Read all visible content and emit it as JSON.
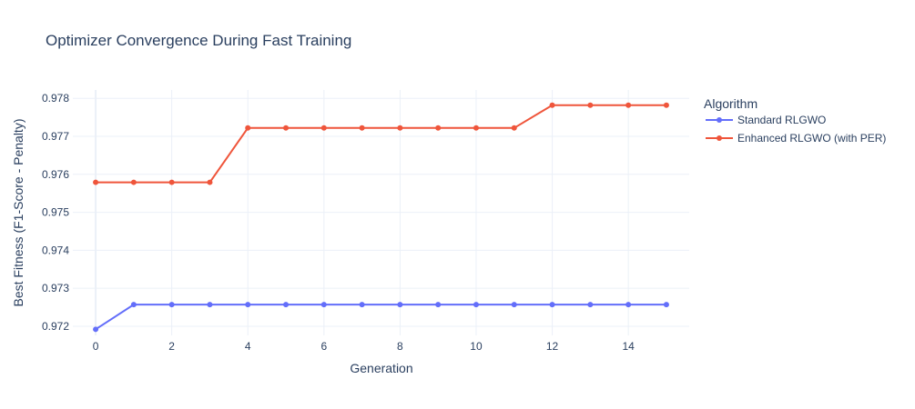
{
  "chart_data": {
    "type": "line",
    "title": "Optimizer Convergence During Fast Training",
    "xlabel": "Generation",
    "ylabel": "Best Fitness (F1-Score - Penalty)",
    "xlim": [
      -0.6,
      15.6
    ],
    "ylim": [
      0.97176,
      0.97822
    ],
    "x_ticks": [
      0,
      2,
      4,
      6,
      8,
      10,
      12,
      14
    ],
    "y_ticks": [
      0.972,
      0.973,
      0.974,
      0.975,
      0.976,
      0.977,
      0.978
    ],
    "grid": true,
    "legend": {
      "title": "Algorithm",
      "position": "right"
    },
    "x": [
      0,
      1,
      2,
      3,
      4,
      5,
      6,
      7,
      8,
      9,
      10,
      11,
      12,
      13,
      14,
      15
    ],
    "series": [
      {
        "name": "Standard RLGWO",
        "color": "#636efa",
        "values": [
          0.97192,
          0.97257,
          0.97257,
          0.97257,
          0.97257,
          0.97257,
          0.97257,
          0.97257,
          0.97257,
          0.97257,
          0.97257,
          0.97257,
          0.97257,
          0.97257,
          0.97257,
          0.97257
        ]
      },
      {
        "name": "Enhanced RLGWO (with PER)",
        "color": "#ef553b",
        "values": [
          0.97579,
          0.97579,
          0.97579,
          0.97579,
          0.97722,
          0.97722,
          0.97722,
          0.97722,
          0.97722,
          0.97722,
          0.97722,
          0.97722,
          0.97782,
          0.97782,
          0.97782,
          0.97782
        ]
      }
    ]
  }
}
